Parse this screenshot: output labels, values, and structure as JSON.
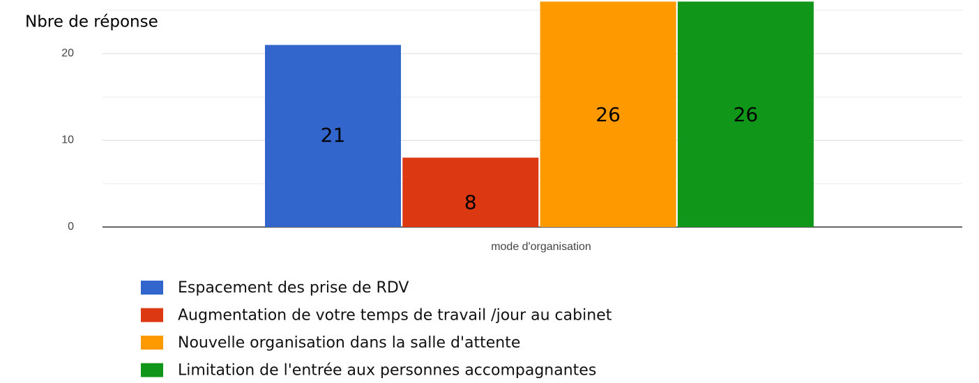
{
  "chart_data": {
    "type": "bar",
    "y_label": "Nbre de réponse",
    "x_label": "mode d'organisation",
    "series": [
      {
        "name": "Espacement des prise de RDV",
        "color": "#3366cc",
        "values": [
          21
        ]
      },
      {
        "name": "Augmentation de votre temps de travail /jour au cabinet",
        "color": "#dc3912",
        "values": [
          8
        ]
      },
      {
        "name": "Nouvelle organisation dans la salle d'attente",
        "color": "#ff9900",
        "values": [
          26
        ]
      },
      {
        "name": "Limitation de l'entrée aux personnes accompagnantes",
        "color": "#109618",
        "values": [
          26
        ]
      }
    ],
    "ylim": [
      0,
      25.6
    ],
    "yticks": [
      0,
      10,
      20
    ],
    "minor_yticks": [
      5,
      15,
      25
    ],
    "grid": true
  }
}
